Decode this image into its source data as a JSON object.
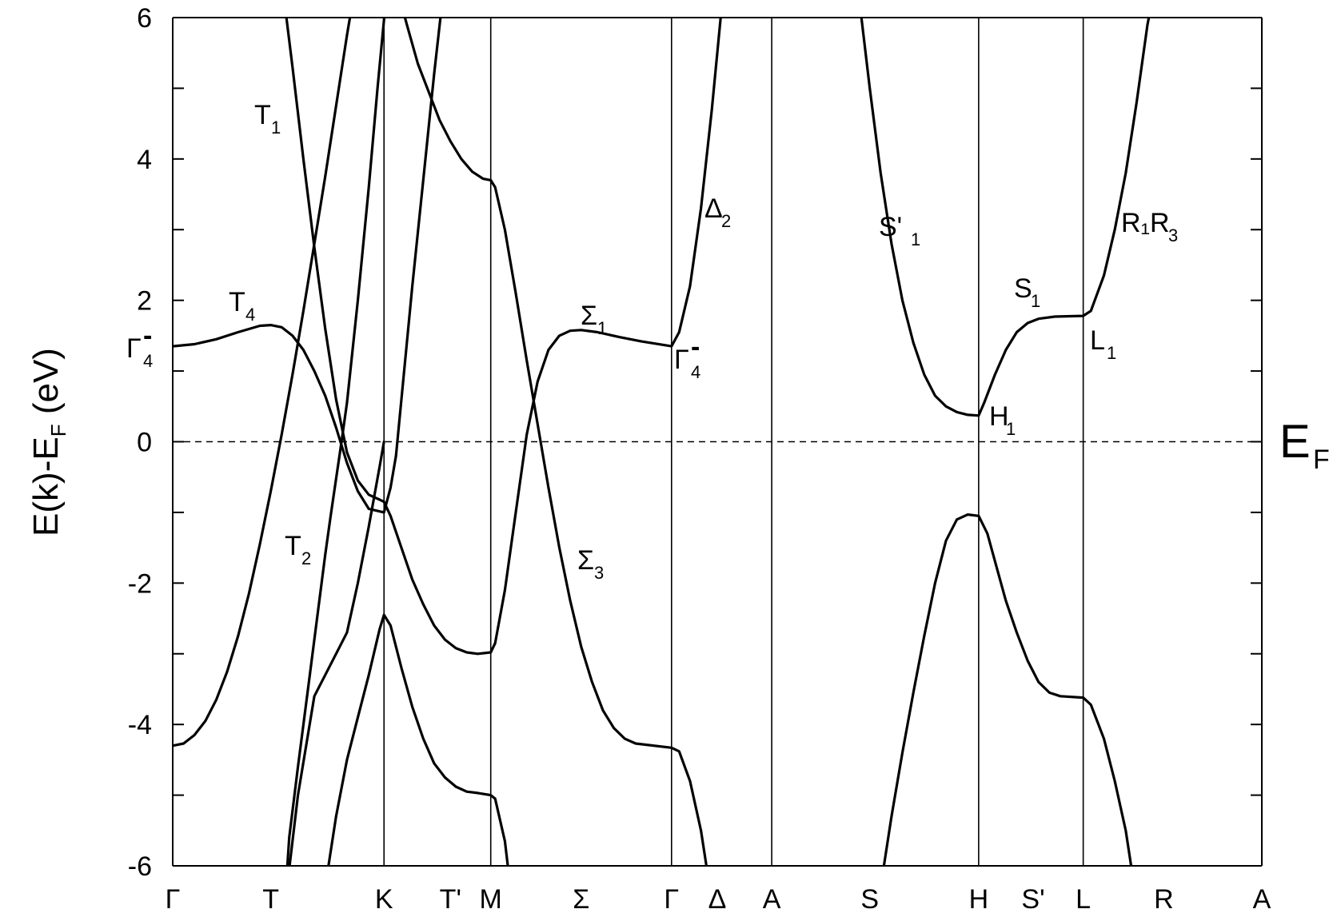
{
  "chart_data": {
    "type": "line",
    "ylabel": "E(k)-E_F (eV)",
    "ylim": [
      -6,
      6
    ],
    "y_ticks": [
      -6,
      -4,
      -2,
      0,
      2,
      4,
      6
    ],
    "y_tick_labels": [
      "-6",
      "-4",
      "-2",
      "0",
      "2",
      "4",
      "6"
    ],
    "x_range": [
      0,
      100
    ],
    "k_points": [
      {
        "label": "Γ",
        "x": 0
      },
      {
        "label": "T",
        "x": 9
      },
      {
        "label": "K",
        "x": 19.4
      },
      {
        "label": "T'",
        "x": 25.5
      },
      {
        "label": "M",
        "x": 29.2
      },
      {
        "label": "Σ",
        "x": 37.5
      },
      {
        "label": "Γ",
        "x": 45.8
      },
      {
        "label": "Δ",
        "x": 50
      },
      {
        "label": "A",
        "x": 55
      },
      {
        "label": "S",
        "x": 64
      },
      {
        "label": "H",
        "x": 74
      },
      {
        "label": "S'",
        "x": 79
      },
      {
        "label": "L",
        "x": 83.6
      },
      {
        "label": "R",
        "x": 91
      },
      {
        "label": "A",
        "x": 100
      }
    ],
    "vertical_lines_x": [
      19.4,
      29.2,
      45.8,
      55,
      74,
      83.6
    ],
    "fermi_level": {
      "y": 0,
      "label_main": "E",
      "label_sub": "F"
    },
    "series": [
      {
        "points": [
          [
            0,
            -4.3
          ],
          [
            1,
            -4.27
          ],
          [
            2,
            -4.15
          ],
          [
            3,
            -3.95
          ],
          [
            4,
            -3.65
          ],
          [
            5,
            -3.25
          ],
          [
            6,
            -2.75
          ],
          [
            7,
            -2.15
          ],
          [
            8,
            -1.45
          ],
          [
            9,
            -0.7
          ],
          [
            10,
            0.1
          ],
          [
            11,
            0.95
          ],
          [
            12,
            1.85
          ],
          [
            13,
            2.8
          ],
          [
            14,
            3.75
          ],
          [
            15,
            4.75
          ],
          [
            16,
            5.75
          ],
          [
            16.6,
            6.3
          ]
        ]
      },
      {
        "points": [
          [
            10.2,
            6.3
          ],
          [
            11,
            5.3
          ],
          [
            12,
            4.0
          ],
          [
            13,
            2.75
          ],
          [
            14,
            1.6
          ],
          [
            15,
            0.6
          ],
          [
            16,
            -0.15
          ],
          [
            17,
            -0.55
          ],
          [
            18,
            -0.75
          ],
          [
            19,
            -0.82
          ],
          [
            19.4,
            -0.85
          ],
          [
            20,
            -1.05
          ],
          [
            21,
            -1.5
          ],
          [
            22,
            -1.95
          ],
          [
            23,
            -2.3
          ],
          [
            24,
            -2.6
          ],
          [
            25,
            -2.8
          ],
          [
            26,
            -2.92
          ],
          [
            27,
            -2.98
          ],
          [
            28,
            -3.0
          ],
          [
            29.2,
            -2.98
          ],
          [
            29.6,
            -2.85
          ],
          [
            30.5,
            -2.1
          ],
          [
            31.5,
            -1.0
          ],
          [
            32.5,
            0.1
          ],
          [
            33.5,
            0.85
          ],
          [
            34.5,
            1.3
          ],
          [
            35.5,
            1.5
          ],
          [
            36.5,
            1.57
          ],
          [
            37.5,
            1.58
          ],
          [
            39,
            1.55
          ],
          [
            41,
            1.48
          ],
          [
            43,
            1.42
          ],
          [
            45.8,
            1.35
          ],
          [
            46.5,
            1.55
          ],
          [
            47.5,
            2.2
          ],
          [
            48.5,
            3.3
          ],
          [
            49.5,
            4.7
          ],
          [
            50.5,
            6.3
          ]
        ]
      },
      {
        "points": [
          [
            0,
            1.35
          ],
          [
            2,
            1.38
          ],
          [
            4,
            1.45
          ],
          [
            6,
            1.55
          ],
          [
            8,
            1.64
          ],
          [
            9,
            1.65
          ],
          [
            10,
            1.62
          ],
          [
            11,
            1.5
          ],
          [
            12,
            1.3
          ],
          [
            13,
            1.0
          ],
          [
            14,
            0.65
          ],
          [
            15,
            0.2
          ],
          [
            16,
            -0.3
          ],
          [
            17,
            -0.7
          ],
          [
            18,
            -0.95
          ],
          [
            19.4,
            -1.0
          ],
          [
            20,
            -0.65
          ],
          [
            20.5,
            -0.2
          ],
          [
            21,
            0.6
          ],
          [
            22,
            2.2
          ],
          [
            23,
            3.7
          ],
          [
            24,
            5.2
          ],
          [
            24.8,
            6.3
          ]
        ]
      },
      {
        "points": [
          [
            19.6,
            6.3
          ],
          [
            18.8,
            5.0
          ],
          [
            18,
            3.6
          ],
          [
            17,
            2.0
          ],
          [
            16,
            0.55
          ],
          [
            15.5,
            0.0
          ],
          [
            14.5,
            -1.05
          ],
          [
            14,
            -1.6
          ],
          [
            13.5,
            -2.2
          ],
          [
            12.5,
            -3.4
          ],
          [
            11.5,
            -4.6
          ],
          [
            10.7,
            -5.6
          ],
          [
            10.4,
            -6.3
          ]
        ]
      },
      {
        "points": [
          [
            10.5,
            -6.3
          ],
          [
            11.5,
            -5.0
          ],
          [
            13,
            -3.6
          ],
          [
            15,
            -3.0
          ],
          [
            16,
            -2.7
          ],
          [
            17,
            -2.0
          ],
          [
            18,
            -1.2
          ],
          [
            19,
            -0.35
          ],
          [
            19.4,
            0.0
          ]
        ]
      },
      {
        "points": [
          [
            14,
            -6.3
          ],
          [
            15,
            -5.3
          ],
          [
            16,
            -4.5
          ],
          [
            17,
            -3.9
          ],
          [
            18,
            -3.3
          ],
          [
            19,
            -2.65
          ],
          [
            19.4,
            -2.45
          ],
          [
            20,
            -2.6
          ],
          [
            21,
            -3.2
          ],
          [
            22,
            -3.75
          ],
          [
            23,
            -4.2
          ],
          [
            24,
            -4.55
          ],
          [
            25,
            -4.75
          ],
          [
            26,
            -4.88
          ],
          [
            27,
            -4.95
          ],
          [
            28,
            -4.97
          ],
          [
            29.2,
            -5.0
          ],
          [
            29.6,
            -5.05
          ],
          [
            30.5,
            -5.65
          ],
          [
            31,
            -6.3
          ]
        ]
      },
      {
        "points": [
          [
            20.8,
            6.3
          ],
          [
            21.5,
            5.9
          ],
          [
            22.5,
            5.35
          ],
          [
            23.5,
            4.95
          ],
          [
            24.5,
            4.55
          ],
          [
            25.5,
            4.25
          ],
          [
            26.5,
            4.0
          ],
          [
            27.5,
            3.82
          ],
          [
            28.5,
            3.72
          ],
          [
            29.2,
            3.7
          ],
          [
            29.6,
            3.6
          ],
          [
            30.5,
            3.0
          ],
          [
            31.5,
            2.1
          ],
          [
            32.5,
            1.15
          ],
          [
            33.5,
            0.25
          ],
          [
            34.5,
            -0.65
          ],
          [
            35.5,
            -1.5
          ],
          [
            36.5,
            -2.25
          ],
          [
            37.5,
            -2.9
          ],
          [
            38.5,
            -3.4
          ],
          [
            39.5,
            -3.8
          ],
          [
            40.5,
            -4.05
          ],
          [
            41.5,
            -4.2
          ],
          [
            42.5,
            -4.27
          ],
          [
            45.8,
            -4.33
          ],
          [
            46.5,
            -4.38
          ],
          [
            47.5,
            -4.8
          ],
          [
            48.5,
            -5.5
          ],
          [
            49.3,
            -6.3
          ]
        ]
      },
      {
        "points": [
          [
            63,
            6.3
          ],
          [
            64,
            5.0
          ],
          [
            65,
            3.8
          ],
          [
            66,
            2.8
          ],
          [
            67,
            2.0
          ],
          [
            68,
            1.4
          ],
          [
            69,
            0.95
          ],
          [
            70,
            0.65
          ],
          [
            71,
            0.5
          ],
          [
            72,
            0.42
          ],
          [
            73,
            0.38
          ],
          [
            74,
            0.37
          ],
          [
            74.5,
            0.55
          ],
          [
            75.5,
            0.95
          ],
          [
            76.5,
            1.3
          ],
          [
            77.5,
            1.55
          ],
          [
            78.5,
            1.68
          ],
          [
            79.5,
            1.74
          ],
          [
            81,
            1.77
          ],
          [
            83.6,
            1.78
          ],
          [
            84.3,
            1.85
          ],
          [
            85.5,
            2.35
          ],
          [
            86.5,
            3.0
          ],
          [
            87.5,
            3.8
          ],
          [
            88.5,
            4.8
          ],
          [
            89.5,
            5.9
          ],
          [
            90,
            6.3
          ]
        ]
      },
      {
        "points": [
          [
            65,
            -6.3
          ],
          [
            66,
            -5.3
          ],
          [
            67,
            -4.4
          ],
          [
            68,
            -3.55
          ],
          [
            69,
            -2.75
          ],
          [
            70,
            -2.0
          ],
          [
            71,
            -1.4
          ],
          [
            72,
            -1.1
          ],
          [
            73,
            -1.03
          ],
          [
            74,
            -1.05
          ],
          [
            74.8,
            -1.3
          ],
          [
            75.6,
            -1.75
          ],
          [
            76.5,
            -2.25
          ],
          [
            77.5,
            -2.7
          ],
          [
            78.5,
            -3.1
          ],
          [
            79.5,
            -3.4
          ],
          [
            80.5,
            -3.55
          ],
          [
            81.5,
            -3.6
          ],
          [
            83.6,
            -3.62
          ],
          [
            84.3,
            -3.72
          ],
          [
            85.5,
            -4.2
          ],
          [
            86.5,
            -4.8
          ],
          [
            87.5,
            -5.5
          ],
          [
            88.3,
            -6.3
          ]
        ]
      }
    ],
    "annotations": [
      {
        "main": "T",
        "sub": "1"
      },
      {
        "main": "T",
        "sub": "4"
      },
      {
        "main": "Γ",
        "sub": "4",
        "sup": "-"
      },
      {
        "main": "T",
        "sub": "2"
      },
      {
        "main": "Σ",
        "sub": "1"
      },
      {
        "main": "Σ",
        "sub": "3"
      },
      {
        "main": "Γ",
        "sub": "4",
        "sup": "-"
      },
      {
        "main": "Δ",
        "sub": "2"
      },
      {
        "main": "S'",
        "sub": "1"
      },
      {
        "main": "S",
        "sub": "1"
      },
      {
        "main": "L",
        "sub": "1"
      },
      {
        "main": "H",
        "sub": "1"
      },
      {
        "main": "R₁R",
        "sub": "3"
      }
    ]
  }
}
